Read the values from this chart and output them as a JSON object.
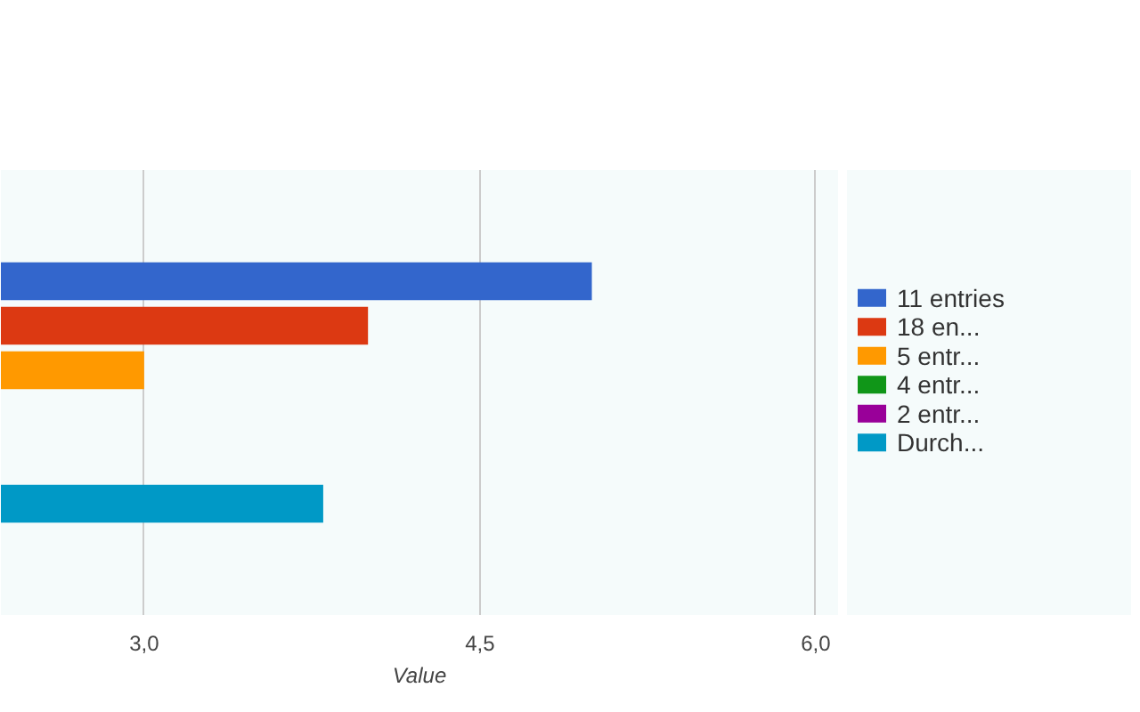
{
  "chart_data": {
    "type": "bar",
    "orientation": "horizontal",
    "xlabel": "Value",
    "categories": [
      null
    ],
    "series": [
      {
        "name": "11 entries",
        "color": "#3366cc",
        "values": [
          5.0
        ]
      },
      {
        "name": "18 en...",
        "color": "#dc3912",
        "values": [
          4.0
        ]
      },
      {
        "name": "5 entr...",
        "color": "#ff9900",
        "values": [
          3.0
        ]
      },
      {
        "name": "4 entr...",
        "color": "#109618",
        "values": [
          null
        ]
      },
      {
        "name": "2 entr...",
        "color": "#990099",
        "values": [
          null
        ]
      },
      {
        "name": "Durch...",
        "color": "#0099c6",
        "values": [
          3.8
        ]
      }
    ],
    "xlim": [
      2.36,
      6.1
    ],
    "xticks": [
      {
        "value": 3.0,
        "label": "3,0"
      },
      {
        "value": 4.5,
        "label": "4,5"
      },
      {
        "value": 6.0,
        "label": "6,0"
      }
    ],
    "grid": "x",
    "legend": "right",
    "tick_labels": "x"
  }
}
